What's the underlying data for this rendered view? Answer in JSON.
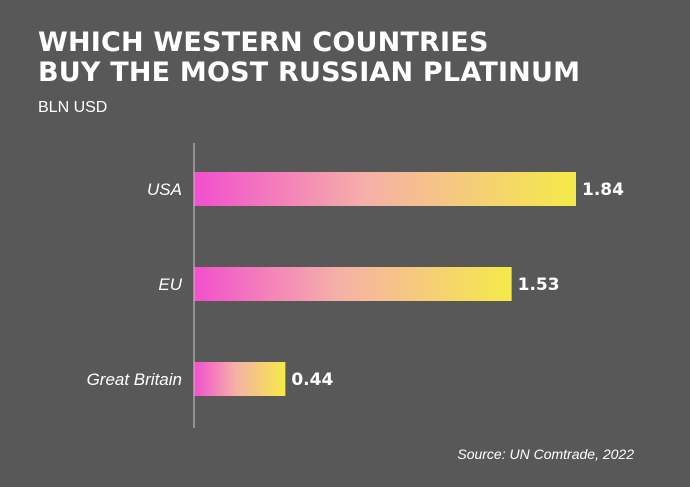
{
  "chart_data": {
    "type": "bar",
    "orientation": "horizontal",
    "title_lines": [
      "WHICH WESTERN COUNTRIES",
      "BUY THE MOST RUSSIAN PLATINUM"
    ],
    "subtitle": "BLN USD",
    "categories": [
      "USA",
      "EU",
      "Great Britain"
    ],
    "values": [
      1.84,
      1.53,
      0.44
    ],
    "value_labels": [
      "1.84",
      "1.53",
      "0.44"
    ],
    "xlim": [
      0,
      1.84
    ],
    "grid": false,
    "source": "Source: UN Comtrade, 2022"
  },
  "colors": {
    "background": "#585858",
    "bar_gradient_start": "#f24fcd",
    "bar_gradient_mid": "#f5b0a8",
    "bar_gradient_end": "#f5ea48",
    "axis": "#cccccc",
    "text": "#ffffff"
  }
}
